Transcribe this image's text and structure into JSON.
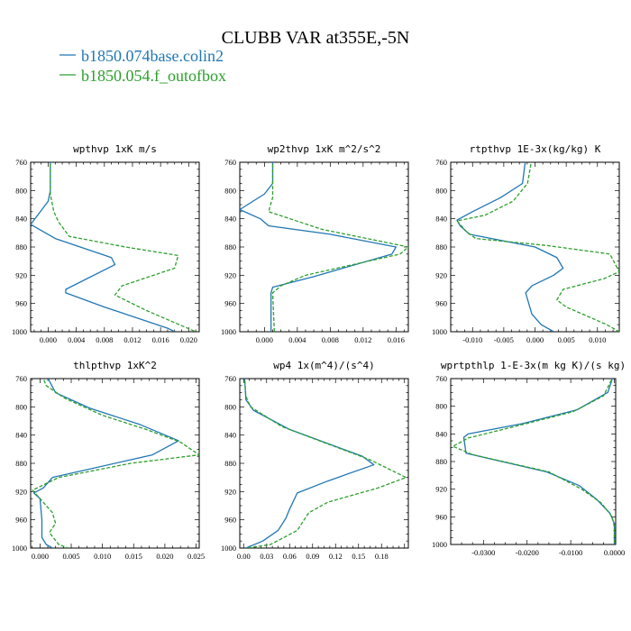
{
  "figure": {
    "title": "CLUBB VAR at355E,-5N",
    "legend": [
      {
        "label": "b1850.074base.colin2",
        "color": "#1f77b4",
        "dash": "solid"
      },
      {
        "label": "b1850.054.f_outofbox",
        "color": "#2ca02c",
        "dash": "dashed"
      }
    ]
  },
  "chart_data": [
    {
      "type": "line",
      "title": "wpthvp   1xK m/s",
      "xlim": [
        -0.0025,
        0.0215
      ],
      "ylim": [
        760,
        1000
      ],
      "y_inverted": true,
      "xticks": [
        0.0,
        0.004,
        0.008,
        0.012,
        0.016,
        0.02
      ],
      "xticklabels": [
        "0.000",
        "0.004",
        "0.008",
        "0.012",
        "0.016",
        "0.020"
      ],
      "yticks": [
        760,
        800,
        840,
        880,
        920,
        960,
        1000
      ],
      "series": [
        {
          "name": "b1850.074base.colin2",
          "color": "#1f77b4",
          "dash": "solid",
          "points": [
            [
              0.0003,
              755
            ],
            [
              0.0003,
              800
            ],
            [
              0.0,
              815
            ],
            [
              -0.0015,
              835
            ],
            [
              -0.0025,
              848
            ],
            [
              0.001,
              868
            ],
            [
              0.009,
              895
            ],
            [
              0.0095,
              905
            ],
            [
              0.0025,
              940
            ],
            [
              0.0025,
              945
            ],
            [
              0.008,
              965
            ],
            [
              0.017,
              995
            ],
            [
              0.018,
              1000
            ]
          ]
        },
        {
          "name": "b1850.054.f_outofbox",
          "color": "#2ca02c",
          "dash": "dashed",
          "points": [
            [
              0.0003,
              755
            ],
            [
              0.0003,
              805
            ],
            [
              0.0008,
              830
            ],
            [
              0.0015,
              845
            ],
            [
              0.003,
              865
            ],
            [
              0.011,
              880
            ],
            [
              0.0185,
              892
            ],
            [
              0.018,
              910
            ],
            [
              0.0105,
              935
            ],
            [
              0.0095,
              948
            ],
            [
              0.014,
              970
            ],
            [
              0.021,
              1000
            ]
          ]
        }
      ]
    },
    {
      "type": "line",
      "title": "wp2thvp   1xK m^2/s^2",
      "xlim": [
        -0.003,
        0.0175
      ],
      "ylim": [
        760,
        1000
      ],
      "y_inverted": true,
      "xticks": [
        0.0,
        0.004,
        0.008,
        0.012,
        0.016
      ],
      "xticklabels": [
        "0.000",
        "0.004",
        "0.008",
        "0.012",
        "0.016"
      ],
      "yticks": [
        760,
        800,
        840,
        880,
        920,
        960,
        1000
      ],
      "series": [
        {
          "name": "b1850.074base.colin2",
          "color": "#1f77b4",
          "dash": "solid",
          "points": [
            [
              0.001,
              755
            ],
            [
              0.001,
              790
            ],
            [
              0.0,
              805
            ],
            [
              -0.003,
              827
            ],
            [
              -0.0005,
              840
            ],
            [
              0.0005,
              850
            ],
            [
              0.008,
              862
            ],
            [
              0.016,
              880
            ],
            [
              0.0155,
              890
            ],
            [
              0.006,
              922
            ],
            [
              0.001,
              937
            ],
            [
              0.0008,
              945
            ],
            [
              0.0008,
              1000
            ]
          ]
        },
        {
          "name": "b1850.054.f_outofbox",
          "color": "#2ca02c",
          "dash": "dashed",
          "points": [
            [
              0.001,
              755
            ],
            [
              0.001,
              810
            ],
            [
              0.0005,
              830
            ],
            [
              0.007,
              855
            ],
            [
              0.0175,
              880
            ],
            [
              0.0165,
              890
            ],
            [
              0.005,
              920
            ],
            [
              0.002,
              935
            ],
            [
              0.001,
              945
            ],
            [
              0.0012,
              1000
            ]
          ]
        }
      ]
    },
    {
      "type": "line",
      "title": "rtpthvp   1E-3x(kg/kg) K",
      "xlim": [
        -0.0135,
        0.0135
      ],
      "ylim": [
        760,
        1000
      ],
      "y_inverted": true,
      "xticks": [
        -0.01,
        -0.005,
        0.0,
        0.005,
        0.01
      ],
      "xticklabels": [
        "-0.010",
        "-0.005",
        "0.000",
        "0.005",
        "0.010"
      ],
      "yticks": [
        760,
        800,
        840,
        880,
        920,
        960,
        1000
      ],
      "series": [
        {
          "name": "b1850.074base.colin2",
          "color": "#1f77b4",
          "dash": "solid",
          "points": [
            [
              -0.0015,
              755
            ],
            [
              -0.002,
              790
            ],
            [
              -0.0055,
              810
            ],
            [
              -0.01,
              830
            ],
            [
              -0.0125,
              842
            ],
            [
              -0.012,
              850
            ],
            [
              -0.0105,
              862
            ],
            [
              0.0,
              880
            ],
            [
              0.0035,
              895
            ],
            [
              0.0045,
              910
            ],
            [
              0.003,
              920
            ],
            [
              -0.0005,
              935
            ],
            [
              -0.0015,
              945
            ],
            [
              -0.0005,
              975
            ],
            [
              0.001,
              990
            ],
            [
              0.003,
              1000
            ]
          ]
        },
        {
          "name": "b1850.054.f_outofbox",
          "color": "#2ca02c",
          "dash": "dashed",
          "points": [
            [
              -0.0005,
              755
            ],
            [
              -0.0012,
              790
            ],
            [
              -0.0035,
              815
            ],
            [
              -0.008,
              835
            ],
            [
              -0.0125,
              843
            ],
            [
              -0.011,
              858
            ],
            [
              -0.0095,
              868
            ],
            [
              0.002,
              878
            ],
            [
              0.012,
              890
            ],
            [
              0.0135,
              915
            ],
            [
              0.011,
              925
            ],
            [
              0.0045,
              940
            ],
            [
              0.0035,
              955
            ],
            [
              0.005,
              965
            ],
            [
              0.0115,
              990
            ],
            [
              0.0135,
              1000
            ]
          ]
        }
      ]
    },
    {
      "type": "line",
      "title": "thlpthvp   1xK^2",
      "xlim": [
        -0.0015,
        0.0255
      ],
      "ylim": [
        760,
        1000
      ],
      "y_inverted": true,
      "xticks": [
        0.0,
        0.005,
        0.01,
        0.015,
        0.02,
        0.025
      ],
      "xticklabels": [
        "0.000",
        "0.005",
        "0.010",
        "0.015",
        "0.020",
        "0.025"
      ],
      "yticks": [
        760,
        800,
        840,
        880,
        920,
        960,
        1000
      ],
      "series": [
        {
          "name": "b1850.074base.colin2",
          "color": "#1f77b4",
          "dash": "solid",
          "points": [
            [
              0.001,
              755
            ],
            [
              0.0025,
              780
            ],
            [
              0.008,
              802
            ],
            [
              0.016,
              825
            ],
            [
              0.0222,
              848
            ],
            [
              0.018,
              868
            ],
            [
              0.002,
              900
            ],
            [
              0.0005,
              915
            ],
            [
              -0.001,
              922
            ],
            [
              0.0,
              930
            ],
            [
              0.0003,
              960
            ],
            [
              0.0003,
              985
            ],
            [
              0.001,
              995
            ],
            [
              0.002,
              1000
            ]
          ]
        },
        {
          "name": "b1850.054.f_outofbox",
          "color": "#2ca02c",
          "dash": "dashed",
          "points": [
            [
              0.0003,
              755
            ],
            [
              0.001,
              770
            ],
            [
              0.004,
              788
            ],
            [
              0.01,
              812
            ],
            [
              0.017,
              832
            ],
            [
              0.0225,
              850
            ],
            [
              0.0255,
              868
            ],
            [
              0.0145,
              880
            ],
            [
              0.003,
              900
            ],
            [
              0.0002,
              912
            ],
            [
              -0.0012,
              918
            ],
            [
              -0.0005,
              925
            ],
            [
              0.002,
              950
            ],
            [
              0.0025,
              965
            ],
            [
              0.0015,
              978
            ],
            [
              0.003,
              995
            ],
            [
              0.0045,
              1000
            ]
          ]
        }
      ]
    },
    {
      "type": "line",
      "title": "wp4   1x(m^4)/(s^4)",
      "xlim": [
        -0.005,
        0.215
      ],
      "ylim": [
        760,
        1000
      ],
      "y_inverted": true,
      "xticks": [
        0.0,
        0.03,
        0.06,
        0.09,
        0.12,
        0.15,
        0.18
      ],
      "xticklabels": [
        "0.00",
        "0.03",
        "0.06",
        "0.09",
        "0.12",
        "0.15",
        "0.18"
      ],
      "yticks": [
        760,
        800,
        840,
        880,
        920,
        960,
        1000
      ],
      "series": [
        {
          "name": "b1850.074base.colin2",
          "color": "#1f77b4",
          "dash": "solid",
          "points": [
            [
              0.001,
              755
            ],
            [
              0.003,
              790
            ],
            [
              0.013,
              805
            ],
            [
              0.06,
              832
            ],
            [
              0.155,
              870
            ],
            [
              0.17,
              882
            ],
            [
              0.11,
              905
            ],
            [
              0.07,
              922
            ],
            [
              0.06,
              945
            ],
            [
              0.055,
              958
            ],
            [
              0.045,
              975
            ],
            [
              0.025,
              990
            ],
            [
              0.003,
              1000
            ]
          ]
        },
        {
          "name": "b1850.054.f_outofbox",
          "color": "#2ca02c",
          "dash": "dashed",
          "points": [
            [
              0.001,
              755
            ],
            [
              0.003,
              785
            ],
            [
              0.009,
              800
            ],
            [
              0.05,
              828
            ],
            [
              0.165,
              875
            ],
            [
              0.212,
              900
            ],
            [
              0.175,
              915
            ],
            [
              0.11,
              935
            ],
            [
              0.085,
              950
            ],
            [
              0.07,
              975
            ],
            [
              0.035,
              995
            ],
            [
              0.005,
              1000
            ]
          ]
        }
      ]
    },
    {
      "type": "line",
      "title": "wprtpthlp   1-E-3x(m kg K)/(s kg)",
      "xlim": [
        -0.0375,
        0.0003
      ],
      "ylim": [
        760,
        1000
      ],
      "y_inverted": true,
      "xticks": [
        -0.03,
        -0.02,
        -0.01,
        0.0
      ],
      "xticklabels": [
        "-0.0300",
        "-0.0200",
        "-0.0100",
        "0.0000"
      ],
      "yticks": [
        760,
        800,
        840,
        880,
        920,
        960,
        1000
      ],
      "series": [
        {
          "name": "b1850.074base.colin2",
          "color": "#1f77b4",
          "dash": "solid",
          "points": [
            [
              -0.0002,
              755
            ],
            [
              -0.0015,
              780
            ],
            [
              -0.0085,
              805
            ],
            [
              -0.021,
              825
            ],
            [
              -0.0335,
              840
            ],
            [
              -0.0345,
              845
            ],
            [
              -0.034,
              868
            ],
            [
              -0.0155,
              895
            ],
            [
              -0.008,
              915
            ],
            [
              -0.004,
              935
            ],
            [
              -0.001,
              955
            ],
            [
              0.0,
              970
            ],
            [
              0.0,
              1000
            ]
          ]
        },
        {
          "name": "b1850.054.f_outofbox",
          "color": "#2ca02c",
          "dash": "dashed",
          "points": [
            [
              -0.0001,
              755
            ],
            [
              -0.0025,
              785
            ],
            [
              -0.0095,
              808
            ],
            [
              -0.022,
              828
            ],
            [
              -0.0335,
              846
            ],
            [
              -0.037,
              858
            ],
            [
              -0.0325,
              870
            ],
            [
              -0.015,
              895
            ],
            [
              -0.0075,
              920
            ],
            [
              -0.003,
              940
            ],
            [
              -0.0005,
              960
            ],
            [
              0.0,
              975
            ],
            [
              0.0,
              1000
            ]
          ]
        }
      ]
    }
  ]
}
